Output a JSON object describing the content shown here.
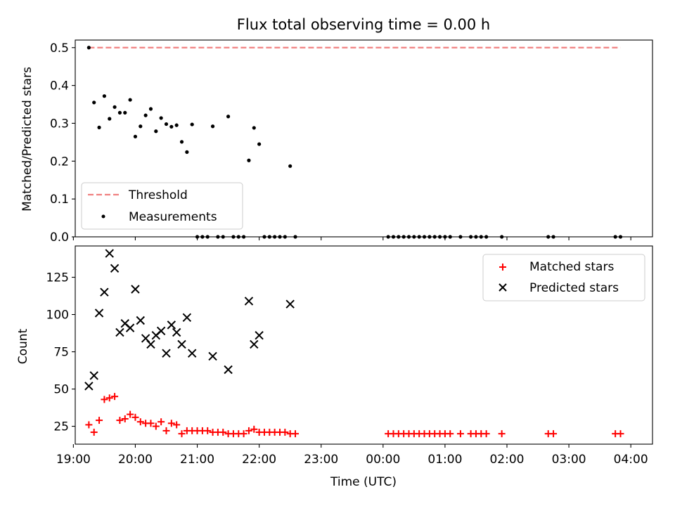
{
  "chart_data": [
    {
      "type": "scatter",
      "title": "Flux total observing time = 0.00 h",
      "xlabel": "",
      "ylabel": "Matched/Predicted stars",
      "xlim": [
        19.03,
        4.35
      ],
      "ylim": [
        0.0,
        0.52
      ],
      "yticks": [
        "0.0",
        "0.1",
        "0.2",
        "0.3",
        "0.4",
        "0.5"
      ],
      "x_tick_labels_visible": false,
      "legend_position": "lower-left",
      "series": [
        {
          "name": "Threshold",
          "kind": "dashed-line",
          "color": "#f08080",
          "points": [
            [
              "19:15",
              0.5
            ],
            [
              "03:50",
              0.5
            ]
          ]
        },
        {
          "name": "Measurements",
          "kind": "dot",
          "color": "#000000",
          "points": [
            [
              "19:15",
              0.5
            ],
            [
              "19:20",
              0.355
            ],
            [
              "19:25",
              0.289
            ],
            [
              "19:30",
              0.372
            ],
            [
              "19:35",
              0.312
            ],
            [
              "19:40",
              0.343
            ],
            [
              "19:45",
              0.328
            ],
            [
              "19:50",
              0.328
            ],
            [
              "19:55",
              0.362
            ],
            [
              "20:00",
              0.265
            ],
            [
              "20:05",
              0.292
            ],
            [
              "20:10",
              0.321
            ],
            [
              "20:15",
              0.338
            ],
            [
              "20:20",
              0.279
            ],
            [
              "20:25",
              0.314
            ],
            [
              "20:30",
              0.298
            ],
            [
              "20:35",
              0.291
            ],
            [
              "20:40",
              0.295
            ],
            [
              "20:45",
              0.251
            ],
            [
              "20:50",
              0.224
            ],
            [
              "20:55",
              0.297
            ],
            [
              "21:00",
              0.0
            ],
            [
              "21:05",
              0.0
            ],
            [
              "21:10",
              0.0
            ],
            [
              "21:15",
              0.292
            ],
            [
              "21:20",
              0.0
            ],
            [
              "21:25",
              0.0
            ],
            [
              "21:30",
              0.318
            ],
            [
              "21:35",
              0.0
            ],
            [
              "21:40",
              0.0
            ],
            [
              "21:45",
              0.0
            ],
            [
              "21:50",
              0.202
            ],
            [
              "21:55",
              0.288
            ],
            [
              "22:00",
              0.245
            ],
            [
              "22:05",
              0.0
            ],
            [
              "22:10",
              0.0
            ],
            [
              "22:15",
              0.0
            ],
            [
              "22:20",
              0.0
            ],
            [
              "22:25",
              0.0
            ],
            [
              "22:30",
              0.187
            ],
            [
              "22:35",
              0.0
            ],
            [
              "00:05",
              0.0
            ],
            [
              "00:10",
              0.0
            ],
            [
              "00:15",
              0.0
            ],
            [
              "00:20",
              0.0
            ],
            [
              "00:25",
              0.0
            ],
            [
              "00:30",
              0.0
            ],
            [
              "00:35",
              0.0
            ],
            [
              "00:40",
              0.0
            ],
            [
              "00:45",
              0.0
            ],
            [
              "00:50",
              0.0
            ],
            [
              "00:55",
              0.0
            ],
            [
              "01:00",
              0.0
            ],
            [
              "01:05",
              0.0
            ],
            [
              "01:15",
              0.0
            ],
            [
              "01:25",
              0.0
            ],
            [
              "01:30",
              0.0
            ],
            [
              "01:35",
              0.0
            ],
            [
              "01:40",
              0.0
            ],
            [
              "01:55",
              0.0
            ],
            [
              "02:40",
              0.0
            ],
            [
              "02:45",
              0.0
            ],
            [
              "03:45",
              0.0
            ],
            [
              "03:50",
              0.0
            ]
          ]
        }
      ]
    },
    {
      "type": "scatter",
      "title": "",
      "xlabel": "Time (UTC)",
      "ylabel": "Count",
      "xlim": [
        19.03,
        4.35
      ],
      "ylim": [
        13.0,
        146.0
      ],
      "yticks": [
        "25",
        "50",
        "75",
        "100",
        "125"
      ],
      "xticks": [
        "19:00",
        "20:00",
        "21:00",
        "22:00",
        "23:00",
        "00:00",
        "01:00",
        "02:00",
        "03:00",
        "04:00"
      ],
      "legend_position": "upper-right",
      "series": [
        {
          "name": "Matched stars",
          "kind": "plus",
          "color": "#ff0000",
          "points": [
            [
              "19:15",
              26
            ],
            [
              "19:20",
              21
            ],
            [
              "19:25",
              29
            ],
            [
              "19:30",
              43
            ],
            [
              "19:35",
              44
            ],
            [
              "19:40",
              45
            ],
            [
              "19:45",
              29
            ],
            [
              "19:50",
              30
            ],
            [
              "19:55",
              33
            ],
            [
              "20:00",
              31
            ],
            [
              "20:05",
              28
            ],
            [
              "20:10",
              27
            ],
            [
              "20:15",
              27
            ],
            [
              "20:20",
              25
            ],
            [
              "20:25",
              28
            ],
            [
              "20:30",
              22
            ],
            [
              "20:35",
              27
            ],
            [
              "20:40",
              26
            ],
            [
              "20:45",
              20
            ],
            [
              "20:50",
              22
            ],
            [
              "20:55",
              22
            ],
            [
              "21:00",
              22
            ],
            [
              "21:05",
              22
            ],
            [
              "21:10",
              22
            ],
            [
              "21:15",
              21
            ],
            [
              "21:20",
              21
            ],
            [
              "21:25",
              21
            ],
            [
              "21:30",
              20
            ],
            [
              "21:35",
              20
            ],
            [
              "21:40",
              20
            ],
            [
              "21:45",
              20
            ],
            [
              "21:50",
              22
            ],
            [
              "21:55",
              23
            ],
            [
              "22:00",
              21
            ],
            [
              "22:05",
              21
            ],
            [
              "22:10",
              21
            ],
            [
              "22:15",
              21
            ],
            [
              "22:20",
              21
            ],
            [
              "22:25",
              21
            ],
            [
              "22:30",
              20
            ],
            [
              "22:35",
              20
            ],
            [
              "00:05",
              20
            ],
            [
              "00:10",
              20
            ],
            [
              "00:15",
              20
            ],
            [
              "00:20",
              20
            ],
            [
              "00:25",
              20
            ],
            [
              "00:30",
              20
            ],
            [
              "00:35",
              20
            ],
            [
              "00:40",
              20
            ],
            [
              "00:45",
              20
            ],
            [
              "00:50",
              20
            ],
            [
              "00:55",
              20
            ],
            [
              "01:00",
              20
            ],
            [
              "01:05",
              20
            ],
            [
              "01:15",
              20
            ],
            [
              "01:25",
              20
            ],
            [
              "01:30",
              20
            ],
            [
              "01:35",
              20
            ],
            [
              "01:40",
              20
            ],
            [
              "01:55",
              20
            ],
            [
              "02:40",
              20
            ],
            [
              "02:45",
              20
            ],
            [
              "03:45",
              20
            ],
            [
              "03:50",
              20
            ]
          ]
        },
        {
          "name": "Predicted stars",
          "kind": "x",
          "color": "#000000",
          "points": [
            [
              "19:15",
              52
            ],
            [
              "19:20",
              59
            ],
            [
              "19:25",
              101
            ],
            [
              "19:30",
              115
            ],
            [
              "19:35",
              141
            ],
            [
              "19:40",
              131
            ],
            [
              "19:45",
              88
            ],
            [
              "19:50",
              94
            ],
            [
              "19:55",
              91
            ],
            [
              "20:00",
              117
            ],
            [
              "20:05",
              96
            ],
            [
              "20:10",
              84
            ],
            [
              "20:15",
              80
            ],
            [
              "20:20",
              86
            ],
            [
              "20:25",
              89
            ],
            [
              "20:30",
              74
            ],
            [
              "20:35",
              93
            ],
            [
              "20:40",
              88
            ],
            [
              "20:45",
              80
            ],
            [
              "20:50",
              98
            ],
            [
              "20:55",
              74
            ],
            [
              "21:15",
              72
            ],
            [
              "21:30",
              63
            ],
            [
              "21:50",
              109
            ],
            [
              "21:55",
              80
            ],
            [
              "22:00",
              86
            ],
            [
              "22:30",
              107
            ]
          ]
        }
      ]
    }
  ]
}
